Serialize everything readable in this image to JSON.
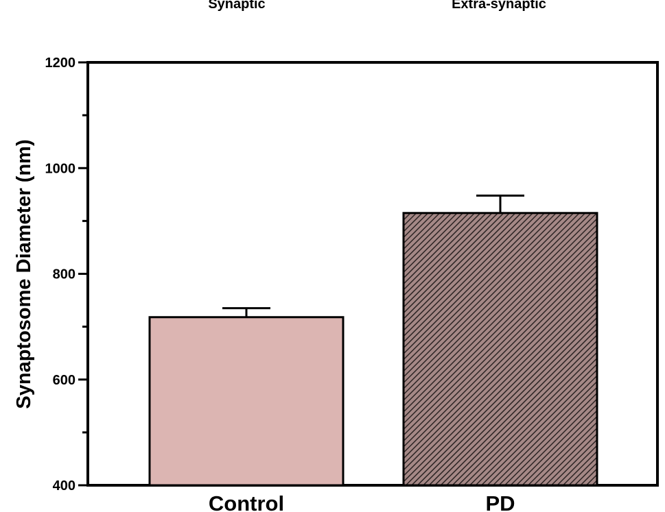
{
  "header_labels": [
    "Synaptic",
    "Extra-synaptic"
  ],
  "chart_data": {
    "type": "bar",
    "ylabel": "Synaptosome Diameter (nm)",
    "xlabel": "",
    "ylim": [
      400,
      1200
    ],
    "yticks": [
      400,
      600,
      800,
      1000,
      1200
    ],
    "ytick_labels": [
      "400",
      "600",
      "800",
      "1000",
      "1200"
    ],
    "minor_tick_step": 100,
    "categories": [
      "Control",
      "PD"
    ],
    "values": [
      718,
      915
    ],
    "errors": [
      17,
      33
    ],
    "fills": [
      "solid",
      "hatched"
    ],
    "colors": {
      "control": "#dcb5b2",
      "pd_base": "#a58886",
      "pd_hatch": "#2b2323",
      "axis": "#000000"
    },
    "grid": false,
    "legend": "none"
  }
}
